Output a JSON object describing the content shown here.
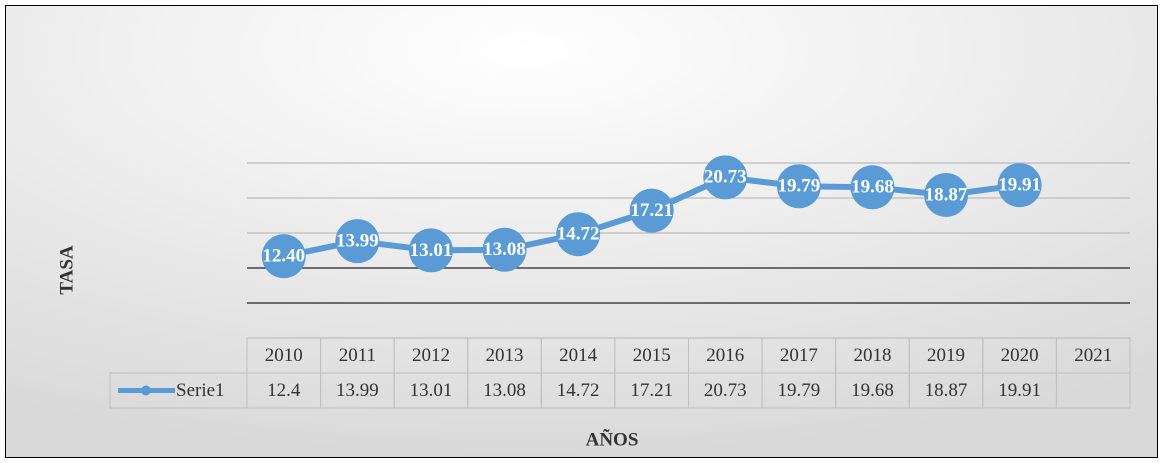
{
  "chart_data": {
    "type": "line",
    "categories": [
      "2010",
      "2011",
      "2012",
      "2013",
      "2014",
      "2015",
      "2016",
      "2017",
      "2018",
      "2019",
      "2020",
      "2021"
    ],
    "series": [
      {
        "name": "Serie1",
        "color": "#5b9bd5",
        "values": [
          12.4,
          13.99,
          13.01,
          13.08,
          14.72,
          17.21,
          20.73,
          19.79,
          19.68,
          18.87,
          19.91,
          null
        ],
        "value_labels": [
          "12.40",
          "13.99",
          "13.01",
          "13.08",
          "14.72",
          "17.21",
          "20.73",
          "19.79",
          "19.68",
          "18.87",
          "19.91",
          null
        ]
      }
    ],
    "y_label": "TASA",
    "x_label": "AÑOS",
    "ylim": [
      3.75,
      22.25
    ],
    "yticks": [
      3.75,
      7.45,
      11.15,
      14.85,
      18.55,
      22.25
    ],
    "grid": true
  }
}
